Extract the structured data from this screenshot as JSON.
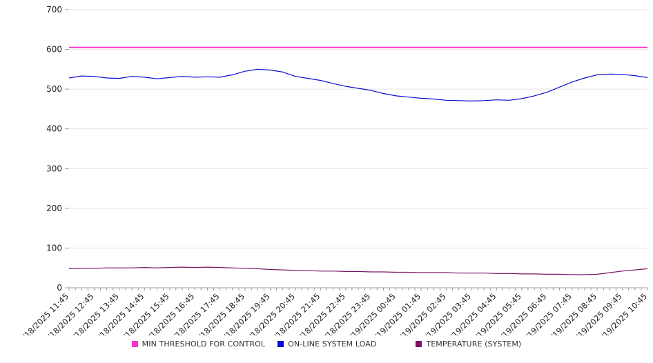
{
  "chart_data": {
    "type": "line",
    "title": "",
    "xlabel": "",
    "ylabel": "",
    "ylim": [
      0,
      700
    ],
    "y_ticks": [
      0,
      100,
      200,
      300,
      400,
      500,
      600,
      700
    ],
    "grid": true,
    "legend_position": "bottom",
    "x_step_minutes": 30,
    "x_labels": [
      "10/18/2025 11:45",
      "10/18/2025 12:45",
      "10/18/2025 13:45",
      "10/18/2025 14:45",
      "10/18/2025 15:45",
      "10/18/2025 16:45",
      "10/18/2025 17:45",
      "10/18/2025 18:45",
      "10/18/2025 19:45",
      "10/18/2025 20:45",
      "10/18/2025 21:45",
      "10/18/2025 22:45",
      "10/18/2025 23:45",
      "10/19/2025 00:45",
      "10/19/2025 01:45",
      "10/19/2025 02:45",
      "10/19/2025 03:45",
      "10/19/2025 04:45",
      "10/19/2025 05:45",
      "10/19/2025 06:45",
      "10/19/2025 07:45",
      "10/19/2025 08:45",
      "10/19/2025 09:45",
      "10/19/2025 10:45"
    ],
    "series": [
      {
        "name": "MIN THRESHOLD FOR CONTROL",
        "color": "#ff2fd2",
        "constant": 605
      },
      {
        "name": "ON-LINE SYSTEM LOAD",
        "color": "#0b0bd0",
        "values": [
          528,
          533,
          532,
          528,
          527,
          532,
          530,
          526,
          529,
          532,
          530,
          531,
          530,
          536,
          545,
          550,
          548,
          543,
          532,
          527,
          522,
          514,
          507,
          502,
          497,
          489,
          483,
          480,
          477,
          475,
          472,
          471,
          470,
          471,
          473,
          472,
          476,
          483,
          492,
          505,
          518,
          528,
          536,
          538,
          537,
          534,
          529
        ]
      },
      {
        "name": "TEMPERATURE (SYSTEM)",
        "color": "#7a1366",
        "values": [
          48,
          49,
          49,
          50,
          50,
          50,
          51,
          50,
          51,
          52,
          51,
          52,
          51,
          50,
          49,
          48,
          46,
          45,
          44,
          43,
          42,
          42,
          41,
          41,
          40,
          40,
          39,
          39,
          38,
          38,
          38,
          37,
          37,
          37,
          36,
          36,
          35,
          35,
          34,
          34,
          33,
          33,
          34,
          38,
          42,
          45,
          48
        ]
      }
    ]
  },
  "colors": {
    "gridline": "#e3e3e3",
    "axis": "#9c9c9c",
    "tick_text": "#222222"
  }
}
